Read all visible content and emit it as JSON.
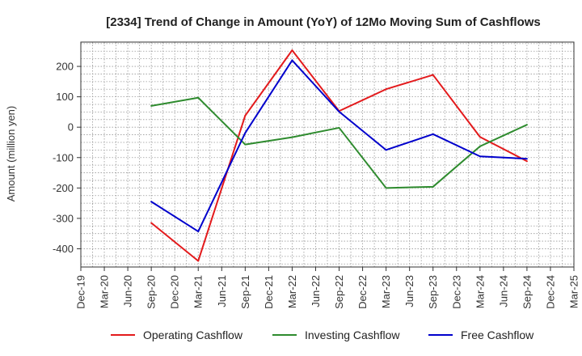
{
  "chart_data": {
    "type": "line",
    "title": "[2334]  Trend of Change in Amount (YoY) of 12Mo Moving Sum of Cashflows",
    "xlabel": "",
    "ylabel": "Amount (million yen)",
    "ylim": [
      -460,
      280
    ],
    "yticks": [
      200,
      100,
      0,
      -100,
      -200,
      -300,
      -400
    ],
    "categories": [
      "Dec-19",
      "Mar-20",
      "Jun-20",
      "Sep-20",
      "Dec-20",
      "Mar-21",
      "Jun-21",
      "Sep-21",
      "Dec-21",
      "Mar-22",
      "Jun-22",
      "Sep-22",
      "Dec-22",
      "Mar-23",
      "Jun-23",
      "Sep-23",
      "Dec-23",
      "Mar-24",
      "Jun-24",
      "Sep-24",
      "Dec-24",
      "Mar-25"
    ],
    "grid": true,
    "legend_position": "bottom",
    "series": [
      {
        "name": "Operating Cashflow",
        "color": "#e31a1c",
        "values": [
          null,
          null,
          null,
          -315,
          null,
          -440,
          null,
          38,
          null,
          253,
          null,
          53,
          null,
          125,
          null,
          172,
          null,
          -32,
          null,
          -112,
          null,
          null
        ]
      },
      {
        "name": "Investing Cashflow",
        "color": "#2e8b2e",
        "values": [
          null,
          null,
          null,
          70,
          null,
          97,
          null,
          -57,
          null,
          -33,
          null,
          -2,
          null,
          -200,
          null,
          -196,
          null,
          -63,
          null,
          8,
          null,
          null
        ]
      },
      {
        "name": "Free Cashflow",
        "color": "#0000cc",
        "values": [
          null,
          null,
          null,
          -245,
          null,
          -343,
          null,
          -19,
          null,
          220,
          null,
          51,
          null,
          -75,
          null,
          -23,
          null,
          -96,
          null,
          -104,
          null,
          null
        ]
      }
    ]
  }
}
